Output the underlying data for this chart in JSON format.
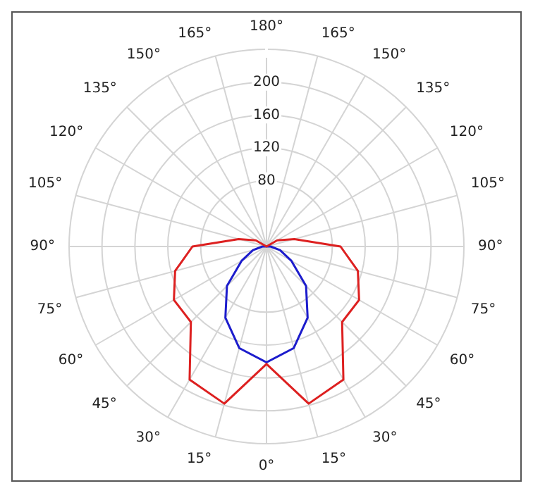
{
  "chart_data": {
    "type": "radar",
    "categories": [
      "180°",
      "165°",
      "150°",
      "135°",
      "120°",
      "105°",
      "90°",
      "75°",
      "60°",
      "45°",
      "30°",
      "15°",
      "0°",
      "15°",
      "30°",
      "45°",
      "60°",
      "75°",
      "90°",
      "105°",
      "120°",
      "135°",
      "150°",
      "165°"
    ],
    "series": [
      {
        "color": "#dd2020",
        "values": [
          0,
          0,
          0,
          0,
          15,
          35,
          90,
          115,
          130,
          130,
          187,
          198,
          143,
          198,
          187,
          130,
          130,
          115,
          90,
          35,
          15,
          0,
          0,
          0
        ]
      },
      {
        "color": "#1c1ccc",
        "values": [
          0,
          0,
          0,
          0,
          0,
          0,
          5,
          17,
          35,
          68,
          100,
          128,
          141,
          128,
          100,
          68,
          35,
          17,
          5,
          0,
          0,
          0,
          0,
          0
        ]
      }
    ],
    "ylim": [
      0,
      240
    ],
    "yticks": [
      80,
      120,
      160,
      200
    ],
    "grid": true,
    "legend": false,
    "marker": "none",
    "line_style": "solid"
  }
}
